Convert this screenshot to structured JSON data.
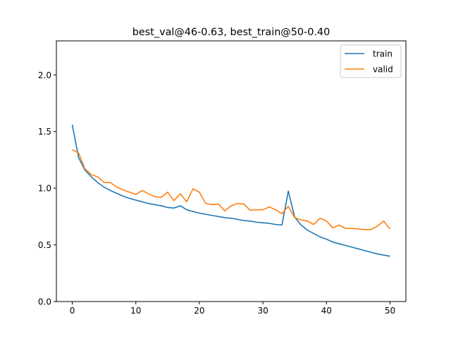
{
  "chart_data": {
    "type": "line",
    "title": "best_val@46-0.63, best_train@50-0.40",
    "xlabel": "",
    "ylabel": "",
    "xlim": [
      -2.5,
      52.5
    ],
    "ylim": [
      0.0,
      2.3
    ],
    "x_ticks": [
      0,
      10,
      20,
      30,
      40,
      50
    ],
    "x_tick_labels": [
      "0",
      "10",
      "20",
      "30",
      "40",
      "50"
    ],
    "y_ticks": [
      0.0,
      0.5,
      1.0,
      1.5,
      2.0
    ],
    "y_tick_labels": [
      "0.0",
      "0.5",
      "1.0",
      "1.5",
      "2.0"
    ],
    "grid": false,
    "legend_position": "top-right",
    "x": [
      0,
      1,
      2,
      3,
      4,
      5,
      6,
      7,
      8,
      9,
      10,
      11,
      12,
      13,
      14,
      15,
      16,
      17,
      18,
      19,
      20,
      21,
      22,
      23,
      24,
      25,
      26,
      27,
      28,
      29,
      30,
      31,
      32,
      33,
      34,
      35,
      36,
      37,
      38,
      39,
      40,
      41,
      42,
      43,
      44,
      45,
      46,
      47,
      48,
      49,
      50
    ],
    "series": [
      {
        "name": "train",
        "color": "#1f77b4",
        "values": [
          1.56,
          1.27,
          1.16,
          1.1,
          1.05,
          1.01,
          0.98,
          0.955,
          0.93,
          0.91,
          0.895,
          0.88,
          0.865,
          0.855,
          0.845,
          0.83,
          0.825,
          0.845,
          0.81,
          0.795,
          0.78,
          0.77,
          0.76,
          0.75,
          0.74,
          0.735,
          0.725,
          0.715,
          0.71,
          0.7,
          0.695,
          0.69,
          0.68,
          0.675,
          0.975,
          0.745,
          0.675,
          0.63,
          0.6,
          0.57,
          0.55,
          0.525,
          0.51,
          0.495,
          0.48,
          0.465,
          0.45,
          0.435,
          0.42,
          0.41,
          0.4
        ]
      },
      {
        "name": "valid",
        "color": "#ff7f0e",
        "values": [
          1.34,
          1.31,
          1.17,
          1.12,
          1.1,
          1.05,
          1.05,
          1.01,
          0.985,
          0.965,
          0.945,
          0.98,
          0.95,
          0.925,
          0.92,
          0.965,
          0.89,
          0.95,
          0.88,
          0.995,
          0.965,
          0.865,
          0.855,
          0.86,
          0.8,
          0.845,
          0.865,
          0.86,
          0.805,
          0.81,
          0.81,
          0.835,
          0.81,
          0.775,
          0.84,
          0.74,
          0.72,
          0.71,
          0.68,
          0.735,
          0.71,
          0.65,
          0.675,
          0.645,
          0.645,
          0.64,
          0.635,
          0.635,
          0.665,
          0.71,
          0.64
        ]
      }
    ]
  }
}
